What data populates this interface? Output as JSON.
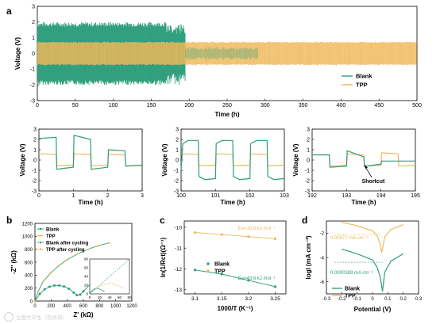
{
  "figure": {
    "panel_labels": [
      "a",
      "b",
      "c",
      "d"
    ],
    "colors": {
      "blank": "#2e9e7c",
      "tpp": "#f0b95a",
      "axis": "#000000"
    },
    "watermark": "全国大学生（有修饰）"
  },
  "chart_data": [
    {
      "id": "a-main",
      "type": "line",
      "xlabel": "Time (h)",
      "ylabel": "Voltage (V)",
      "xlim": [
        0,
        500
      ],
      "ylim": [
        -3,
        3
      ],
      "xticks": [
        0,
        50,
        100,
        150,
        200,
        250,
        300,
        350,
        400,
        450,
        500
      ],
      "yticks": [
        -3,
        -2,
        -1,
        0,
        1,
        2,
        3
      ],
      "series": [
        {
          "name": "Blank",
          "description_values": {
            "dense_band_until_h": 195,
            "upper_envelope": 2.0,
            "lower_envelope": -2.0,
            "after_short_band": 0.4
          }
        },
        {
          "name": "TPP",
          "description_values": {
            "until_h": 500,
            "upper_envelope": 0.75,
            "lower_envelope": -0.75
          }
        }
      ],
      "legend": [
        "Blank",
        "TPP"
      ],
      "legend_position": "center-right"
    },
    {
      "id": "a-zoom1",
      "type": "line",
      "xlabel": "Time (h)",
      "ylabel": "Voltage (V)",
      "xlim": [
        0,
        3
      ],
      "ylim": [
        -3,
        3
      ],
      "xticks": [
        0,
        1,
        2,
        3
      ],
      "yticks": [
        -3,
        -2,
        -1,
        0,
        1,
        2,
        3
      ],
      "series": [
        {
          "name": "Blank",
          "x": [
            0,
            0.02,
            0.5,
            0.52,
            0.75,
            1.0,
            1.02,
            1.5,
            1.52,
            2.0,
            2.02,
            2.5,
            2.52,
            3.0
          ],
          "y": [
            2.1,
            2.1,
            2.2,
            -0.9,
            -0.8,
            -0.7,
            2.4,
            2.0,
            -0.9,
            -0.7,
            1.0,
            0.9,
            -0.6,
            -0.5
          ]
        },
        {
          "name": "TPP",
          "x": [
            0,
            0.5,
            0.52,
            1.0,
            1.02,
            1.5,
            1.52,
            2.0,
            2.02,
            2.5,
            2.52,
            3.0
          ],
          "y": [
            0.6,
            0.55,
            -0.55,
            -0.5,
            0.6,
            0.55,
            -0.55,
            -0.5,
            0.55,
            0.5,
            -0.55,
            -0.5
          ]
        }
      ]
    },
    {
      "id": "a-zoom2",
      "type": "line",
      "xlabel": "Time (h)",
      "ylabel": "Voltage (V)",
      "xlim": [
        100,
        103
      ],
      "ylim": [
        -3,
        3
      ],
      "xticks": [
        100,
        101,
        102,
        103
      ],
      "yticks": [
        -3,
        -2,
        -1,
        0,
        1,
        2,
        3
      ],
      "series": [
        {
          "name": "Blank",
          "x": [
            100,
            100.05,
            100.2,
            100.5,
            100.52,
            100.7,
            101,
            101.02,
            101.2,
            101.5,
            101.52,
            101.7,
            102,
            102.02,
            102.2,
            102.5,
            102.52,
            102.7,
            103
          ],
          "y": [
            -1.0,
            1.6,
            1.9,
            1.9,
            -1.6,
            -1.9,
            -1.8,
            1.6,
            1.9,
            1.9,
            -1.6,
            -1.9,
            -1.8,
            1.6,
            1.9,
            1.9,
            -1.6,
            -1.9,
            -1.8
          ]
        },
        {
          "name": "TPP",
          "x": [
            100,
            100.5,
            100.52,
            101,
            101.02,
            101.5,
            101.52,
            102,
            102.02,
            102.5,
            102.52,
            103
          ],
          "y": [
            0.6,
            0.55,
            -0.55,
            -0.5,
            0.6,
            0.55,
            -0.55,
            -0.5,
            0.6,
            0.55,
            -0.55,
            -0.5
          ]
        }
      ]
    },
    {
      "id": "a-zoom3",
      "type": "line",
      "xlabel": "Time (h)",
      "ylabel": "Voltage (V)",
      "xlim": [
        192,
        195
      ],
      "ylim": [
        -3,
        3
      ],
      "xticks": [
        192,
        193,
        194,
        195
      ],
      "yticks": [
        -3,
        -2,
        -1,
        0,
        1,
        2,
        3
      ],
      "annotation": "Shortcut",
      "series": [
        {
          "name": "Blank",
          "x": [
            192,
            192.5,
            192.52,
            193,
            193.02,
            193.5,
            193.52,
            194,
            194.02,
            195
          ],
          "y": [
            0.5,
            0.5,
            -0.7,
            -0.6,
            0.9,
            0.3,
            -0.6,
            -0.4,
            -0.1,
            -0.1
          ]
        },
        {
          "name": "TPP",
          "x": [
            192,
            192.5,
            192.52,
            193,
            193.02,
            193.5,
            193.52,
            194,
            194.02,
            194.5,
            194.52,
            195
          ],
          "y": [
            0.5,
            0.5,
            -0.6,
            -0.5,
            0.6,
            0.5,
            -0.6,
            -0.5,
            0.7,
            0.6,
            -0.6,
            -0.5
          ]
        }
      ]
    },
    {
      "id": "b",
      "type": "scatter",
      "xlabel": "Z' (kΩ)",
      "ylabel": "-Z'' (kΩ)",
      "xlim": [
        0,
        1200
      ],
      "ylim": [
        0,
        1200
      ],
      "xticks": [
        0,
        200,
        400,
        600,
        800,
        1000,
        1200
      ],
      "yticks": [
        0,
        200,
        400,
        600,
        800,
        1000,
        1200
      ],
      "legend": [
        "Blank",
        "TPP",
        "Blank after cycling",
        "TPP after cycling"
      ],
      "series": [
        {
          "name": "Blank",
          "x": [
            0,
            60,
            120,
            180,
            240,
            300,
            360,
            420,
            480,
            520,
            560,
            600,
            700,
            800,
            920
          ],
          "y": [
            0,
            110,
            180,
            220,
            240,
            240,
            225,
            190,
            130,
            90,
            100,
            150,
            280,
            420,
            580
          ]
        },
        {
          "name": "TPP",
          "x": [
            0,
            40,
            100,
            200,
            300,
            400,
            500,
            600,
            700,
            800,
            920
          ],
          "y": [
            0,
            150,
            300,
            440,
            550,
            640,
            710,
            770,
            820,
            860,
            900
          ]
        },
        {
          "name": "Blank after cycling",
          "x": [
            0,
            5,
            10,
            15,
            20,
            25,
            30
          ],
          "y": [
            0,
            8,
            12,
            13,
            11,
            8,
            6
          ]
        },
        {
          "name": "TPP after cycling",
          "x": [
            0,
            10,
            20,
            30,
            40,
            50,
            60,
            70
          ],
          "y": [
            0,
            10,
            17,
            22,
            24,
            22,
            17,
            12
          ]
        }
      ],
      "inset": {
        "xlim": [
          0,
          80
        ],
        "ylim": [
          0,
          80
        ],
        "xticks": [
          0,
          20,
          40,
          60,
          80
        ],
        "yticks": [
          0,
          20,
          40,
          60,
          80
        ]
      }
    },
    {
      "id": "c",
      "type": "scatter",
      "xlabel": "1000/T (K⁻¹)",
      "ylabel": "ln(1/Rct)(Ω⁻¹)",
      "xlim": [
        3.08,
        3.27
      ],
      "ylim": [
        -13.2,
        -9.7
      ],
      "xticks": [
        3.1,
        3.15,
        3.2,
        3.25
      ],
      "yticks": [
        -13,
        -12,
        -11,
        -10
      ],
      "legend": [
        "Blank",
        "TPP"
      ],
      "annotations": [
        "Ea=16.6 kJ mol⁻¹",
        "Ea=43.6 kJ mol⁻¹"
      ],
      "series": [
        {
          "name": "Blank",
          "x": [
            3.1,
            3.15,
            3.2,
            3.25
          ],
          "y": [
            -12.05,
            -12.25,
            -12.55,
            -12.85
          ]
        },
        {
          "name": "TPP",
          "x": [
            3.1,
            3.15,
            3.2,
            3.25
          ],
          "y": [
            -10.25,
            -10.35,
            -10.45,
            -10.55
          ]
        }
      ]
    },
    {
      "id": "d",
      "type": "line",
      "xlabel": "Potential (V)",
      "ylabel": "logI (mA cm⁻²)",
      "xlim": [
        -0.3,
        0.3
      ],
      "ylim": [
        -7,
        -1
      ],
      "xticks": [
        -0.3,
        -0.2,
        -0.1,
        0.0,
        0.1,
        0.2,
        0.3
      ],
      "yticks": [
        -6,
        -4,
        -2
      ],
      "legend": [
        "Blank",
        "TPP"
      ],
      "annotations": [
        "0.00871 mA cm⁻²",
        "0.0000389 mA cm⁻²"
      ],
      "series": [
        {
          "name": "TPP",
          "x": [
            -0.2,
            -0.1,
            0.0,
            0.03,
            0.05,
            0.06,
            0.08,
            0.12,
            0.2
          ],
          "y": [
            -1.1,
            -1.4,
            -1.8,
            -2.2,
            -2.9,
            -3.6,
            -2.3,
            -1.7,
            -1.3
          ]
        },
        {
          "name": "Blank",
          "x": [
            -0.2,
            -0.1,
            0.0,
            0.03,
            0.05,
            0.065,
            0.08,
            0.12,
            0.2
          ],
          "y": [
            -3.3,
            -3.7,
            -4.2,
            -4.8,
            -5.6,
            -6.8,
            -5.2,
            -4.3,
            -3.7
          ]
        }
      ]
    }
  ]
}
